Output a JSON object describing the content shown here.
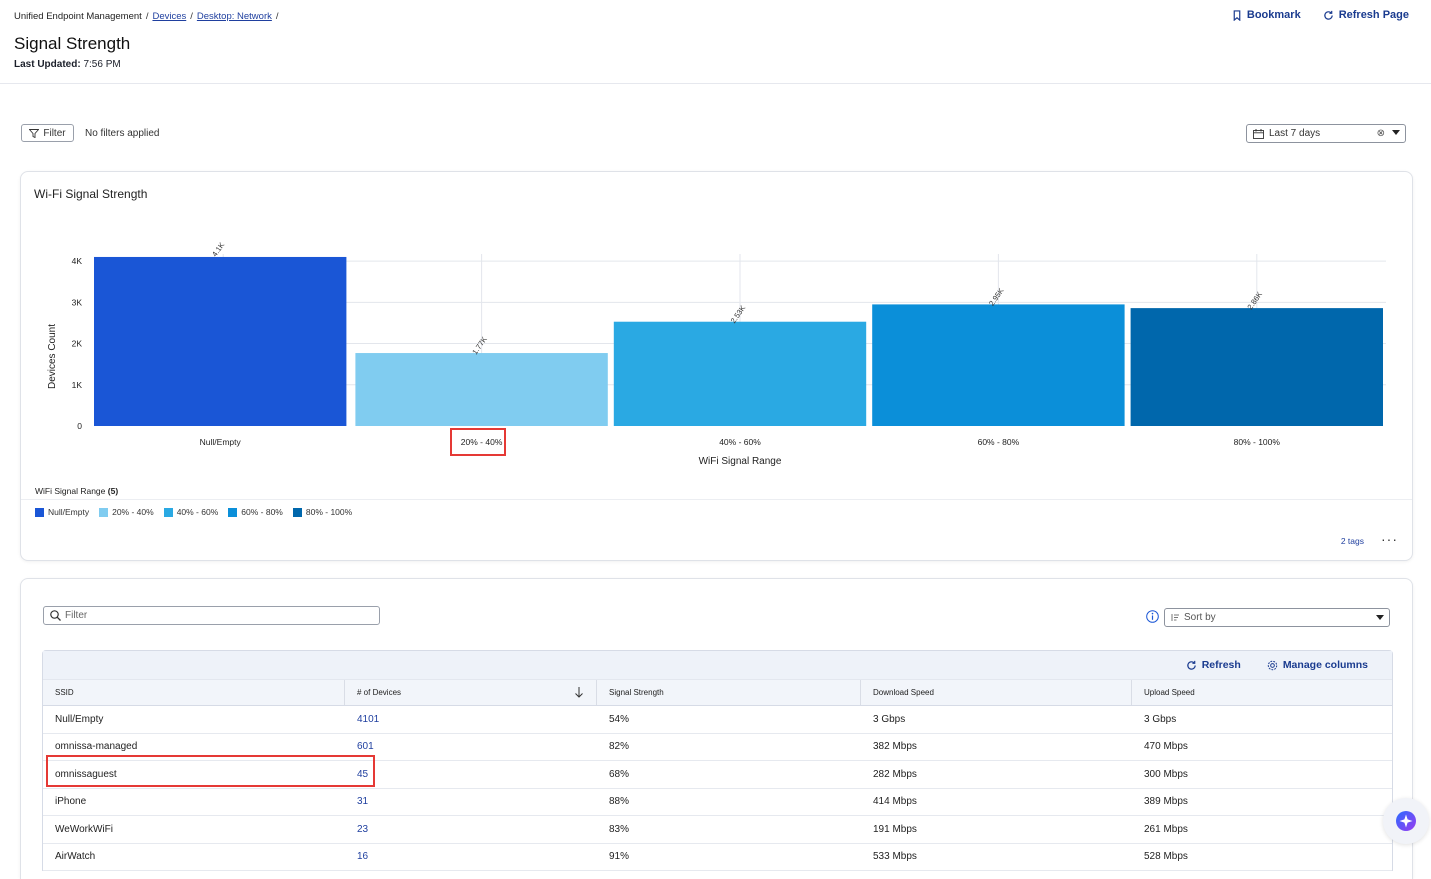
{
  "breadcrumb": {
    "root": "Unified Endpoint Management",
    "devices": "Devices",
    "network": "Desktop: Network"
  },
  "page": {
    "title": "Signal Strength",
    "last_updated_label": "Last Updated:",
    "last_updated_value": "7:56 PM"
  },
  "top_actions": {
    "bookmark": "Bookmark",
    "refresh_page": "Refresh Page"
  },
  "filter": {
    "button": "Filter",
    "status": "No filters applied"
  },
  "date_range": {
    "value": "Last 7 days"
  },
  "chart_card": {
    "title": "Wi-Fi Signal Strength",
    "legend_title": "WiFi Signal Range",
    "legend_count": "(5)",
    "tags_link": "2 tags",
    "more": "···"
  },
  "chart_data": {
    "type": "bar",
    "title": "Wi-Fi Signal Strength",
    "xlabel": "WiFi Signal Range",
    "ylabel": "Devices Count",
    "categories": [
      "Null/Empty",
      "20% - 40%",
      "40% - 60%",
      "60% - 80%",
      "80% - 100%"
    ],
    "values": [
      4101,
      1770,
      2530,
      2950,
      2860
    ],
    "data_labels": [
      "4.1K",
      "1.77K",
      "2.53K",
      "2.95K",
      "2.86K"
    ],
    "colors": [
      "#1a56d6",
      "#80ccf0",
      "#2aa9e3",
      "#0b8fd9",
      "#0067ac"
    ],
    "yticks": [
      0,
      1000,
      2000,
      3000,
      4000
    ],
    "ytick_labels": [
      "0",
      "1K",
      "2K",
      "3K",
      "4K"
    ],
    "ylim": [
      0,
      4100
    ],
    "legend": "bottom-left",
    "grid": true,
    "highlighted_category": "20% - 40%"
  },
  "table": {
    "search_placeholder": "Filter",
    "sort_placeholder": "Sort by",
    "refresh": "Refresh",
    "manage_columns": "Manage columns",
    "columns": [
      "SSID",
      "# of Devices",
      "Signal Strength",
      "Download Speed",
      "Upload Speed"
    ],
    "rows": [
      [
        "Null/Empty",
        "4101",
        "54%",
        "3 Gbps",
        "3 Gbps"
      ],
      [
        "omnissa-managed",
        "601",
        "82%",
        "382 Mbps",
        "470 Mbps"
      ],
      [
        "omnissaguest",
        "45",
        "68%",
        "282 Mbps",
        "300 Mbps"
      ],
      [
        "iPhone",
        "31",
        "88%",
        "414 Mbps",
        "389 Mbps"
      ],
      [
        "WeWorkWiFi",
        "23",
        "83%",
        "191 Mbps",
        "261 Mbps"
      ],
      [
        "AirWatch",
        "16",
        "91%",
        "533 Mbps",
        "528 Mbps"
      ]
    ],
    "highlighted_row": "omnissaguest"
  },
  "colors": {
    "accent": "#1a3b8f",
    "highlight": "#e53935"
  }
}
